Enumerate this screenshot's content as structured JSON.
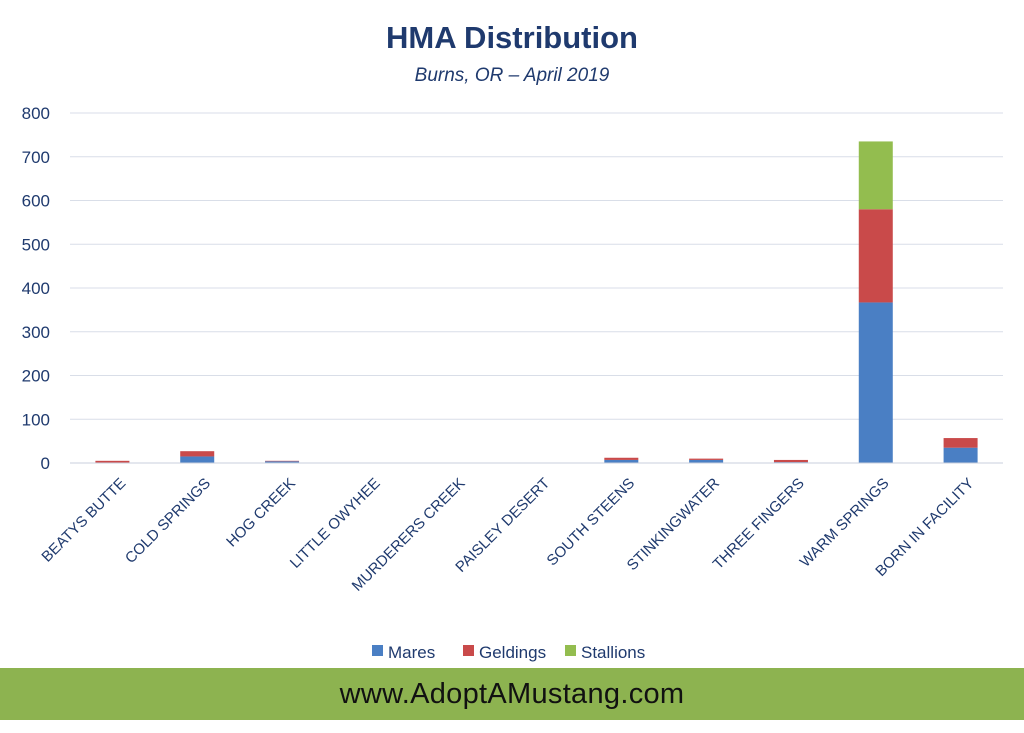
{
  "colors": {
    "mares": "#4a7fc4",
    "geldings": "#c94a4a",
    "stallions": "#93bd4f",
    "text": "#1f3a6e",
    "footer": "#8db350"
  },
  "chart_data": {
    "type": "bar",
    "stacked": true,
    "title": "HMA Distribution",
    "subtitle": "Burns, OR – April 2019",
    "xlabel": "",
    "ylabel": "",
    "ylim": [
      0,
      800
    ],
    "yticks": [
      "0",
      "100",
      "200",
      "300",
      "400",
      "500",
      "600",
      "700",
      "800"
    ],
    "grid": true,
    "legend_position": "bottom",
    "categories": [
      "BEATYS BUTTE",
      "COLD SPRINGS",
      "HOG CREEK",
      "LITTLE OWYHEE",
      "MURDERERS CREEK",
      "PAISLEY DESERT",
      "SOUTH STEENS",
      "STINKINGWATER",
      "THREE FINGERS",
      "WARM SPRINGS",
      "BORN IN FACILITY"
    ],
    "series": [
      {
        "name": "Mares",
        "values": [
          1,
          15,
          4,
          0,
          0,
          0,
          7,
          7,
          2,
          367,
          35
        ]
      },
      {
        "name": "Geldings",
        "values": [
          4,
          12,
          1,
          0,
          0,
          0,
          5,
          3,
          5,
          213,
          22
        ]
      },
      {
        "name": "Stallions",
        "values": [
          0,
          0,
          0,
          0,
          0,
          0,
          0,
          0,
          0,
          155,
          0
        ]
      }
    ]
  },
  "footer": {
    "text": "www.AdoptAMustang.com"
  }
}
